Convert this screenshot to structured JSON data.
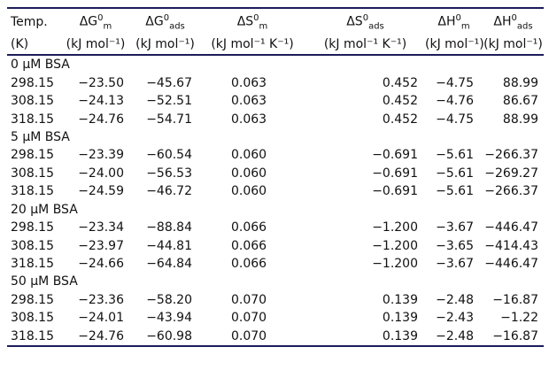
{
  "header": {
    "columns": [
      {
        "symbol": "",
        "label": "Temp.",
        "unit": "(K)"
      },
      {
        "symbol": "ΔG",
        "sup": "0",
        "sub": "m",
        "unit": "(kJ mol⁻¹)"
      },
      {
        "symbol": "ΔG",
        "sup": "0",
        "sub": "ads",
        "unit": "(kJ mol⁻¹)"
      },
      {
        "symbol": "ΔS",
        "sup": "0",
        "sub": "m",
        "unit": "(kJ mol⁻¹ K⁻¹)"
      },
      {
        "symbol": "ΔS",
        "sup": "0",
        "sub": "ads",
        "unit": "(kJ mol⁻¹ K⁻¹)"
      },
      {
        "symbol": "ΔH",
        "sup": "0",
        "sub": "m",
        "unit": "(kJ mol⁻¹)"
      },
      {
        "symbol": "ΔH",
        "sup": "0",
        "sub": "ads",
        "unit": "(kJ mol⁻¹)"
      }
    ]
  },
  "groups": [
    {
      "label": "0 μM BSA",
      "rows": [
        [
          "298.15",
          "−23.50",
          "−45.67",
          "0.063",
          "0.452",
          "−4.75",
          "88.99"
        ],
        [
          "308.15",
          "−24.13",
          "−52.51",
          "0.063",
          "0.452",
          "−4.76",
          "86.67"
        ],
        [
          "318.15",
          "−24.76",
          "−54.71",
          "0.063",
          "0.452",
          "−4.75",
          "88.99"
        ]
      ]
    },
    {
      "label": "5 μM BSA",
      "rows": [
        [
          "298.15",
          "−23.39",
          "−60.54",
          "0.060",
          "−0.691",
          "−5.61",
          "−266.37"
        ],
        [
          "308.15",
          "−24.00",
          "−56.53",
          "0.060",
          "−0.691",
          "−5.61",
          "−269.27"
        ],
        [
          "318.15",
          "−24.59",
          "−46.72",
          "0.060",
          "−0.691",
          "−5.61",
          "−266.37"
        ]
      ]
    },
    {
      "label": "20 μM BSA",
      "rows": [
        [
          "298.15",
          "−23.34",
          "−88.84",
          "0.066",
          "−1.200",
          "−3.67",
          "−446.47"
        ],
        [
          "308.15",
          "−23.97",
          "−44.81",
          "0.066",
          "−1.200",
          "−3.65",
          "−414.43"
        ],
        [
          "318.15",
          "−24.66",
          "−64.84",
          "0.066",
          "−1.200",
          "−3.67",
          "−446.47"
        ]
      ]
    },
    {
      "label": "50 μM BSA",
      "rows": [
        [
          "298.15",
          "−23.36",
          "−58.20",
          "0.070",
          "0.139",
          "−2.48",
          "−16.87"
        ],
        [
          "308.15",
          "−24.01",
          "−43.94",
          "0.070",
          "0.139",
          "−2.43",
          "−1.22"
        ],
        [
          "318.15",
          "−24.76",
          "−60.98",
          "0.070",
          "0.139",
          "−2.48",
          "−16.87"
        ]
      ]
    }
  ]
}
